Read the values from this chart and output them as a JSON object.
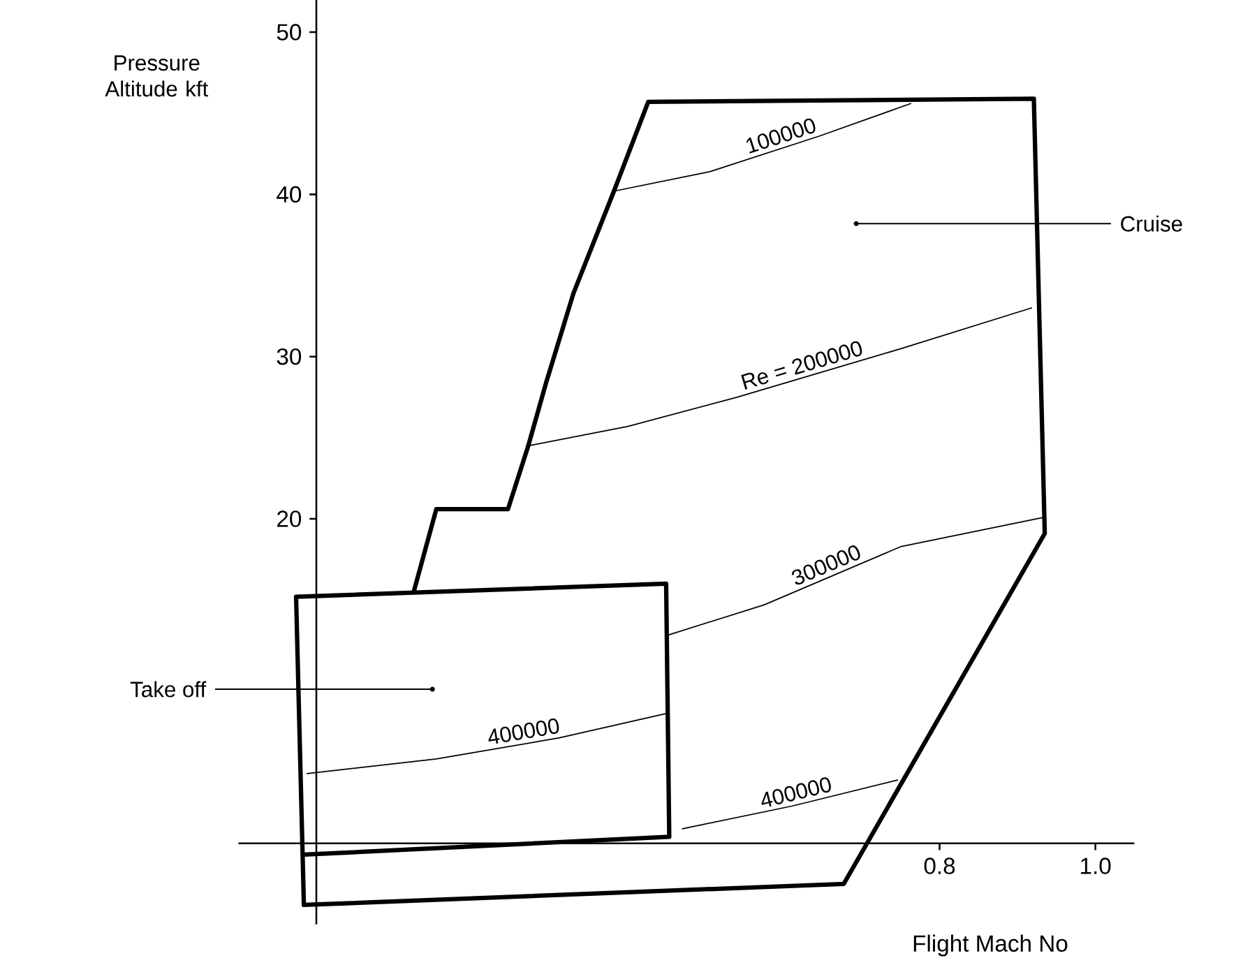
{
  "chart_data": {
    "type": "line",
    "xlabel": "Flight Mach No",
    "ylabel": "Pressure Altitude kft",
    "xlim": [
      -0.1,
      1.05
    ],
    "ylim": [
      -5,
      52
    ],
    "xticks": [
      0.8,
      {
        "value": 1.0,
        "label": "1.0"
      }
    ],
    "yticks": [
      20,
      30,
      40,
      50
    ],
    "series": [
      {
        "color": "#000000",
        "x": [
          0.125,
          0.154,
          0.246,
          0.272,
          0.295,
          0.33,
          0.382,
          0.426,
          0.921,
          0.935,
          0.677,
          -0.016
        ],
        "values": [
          15.5,
          20.6,
          20.6,
          24.5,
          28.4,
          33.9,
          40.2,
          45.7,
          45.9,
          19.1,
          -2.5,
          -3.8
        ]
      },
      {
        "color": "#000000",
        "x": [
          -0.016,
          -0.026,
          0.449,
          0.453,
          -0.016
        ],
        "values": [
          -3.8,
          15.2,
          16.0,
          0.4,
          -0.7
        ]
      },
      {
        "name": "100000",
        "color": "#000000",
        "x": [
          0.382,
          0.505,
          0.646,
          0.763
        ],
        "values": [
          40.2,
          41.4,
          43.6,
          45.6
        ]
      },
      {
        "name": "Re = 200000",
        "color": "#000000",
        "x": [
          0.272,
          0.4,
          0.54,
          0.751,
          0.918
        ],
        "values": [
          24.5,
          25.7,
          27.5,
          30.5,
          33.0
        ]
      },
      {
        "name": "300000",
        "color": "#000000",
        "x": [
          0.449,
          0.575,
          0.751,
          0.935
        ],
        "values": [
          12.8,
          14.7,
          18.3,
          20.1
        ]
      },
      {
        "name": "400000",
        "color": "#000000",
        "x": [
          -0.012,
          0.154,
          0.312,
          0.449
        ],
        "values": [
          4.3,
          5.2,
          6.5,
          8.0
        ]
      },
      {
        "name": "400000",
        "color": "#000000",
        "x": [
          0.47,
          0.611,
          0.746
        ],
        "values": [
          0.9,
          2.3,
          3.9
        ]
      }
    ],
    "annotations": [
      {
        "text": "Cruise",
        "x": 0.693,
        "y": 38.2
      },
      {
        "text": "Take off",
        "x": 0.149,
        "y": 9.5
      }
    ]
  }
}
